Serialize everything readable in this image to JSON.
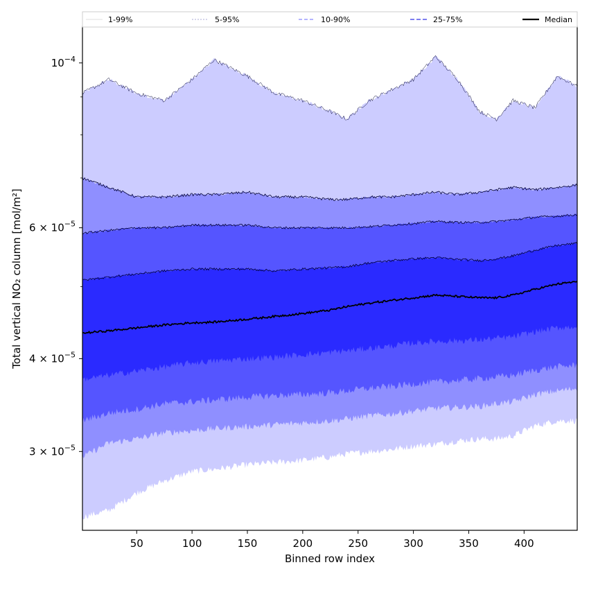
{
  "chart_data": {
    "type": "area",
    "xlabel": "Binned row index",
    "ylabel": "Total vertical NO₂ column [mol/m²]",
    "yscale": "log",
    "xlim": [
      1,
      448
    ],
    "ylim": [
      2.35e-05,
      0.000112
    ],
    "grid": false,
    "legend_position": "top",
    "x_ticks": [
      50,
      100,
      150,
      200,
      250,
      300,
      350,
      400
    ],
    "x_tick_labels": [
      "50",
      "100",
      "150",
      "200",
      "250",
      "300",
      "350",
      "400"
    ],
    "y_ticks": [
      {
        "value": 0.0001,
        "mantissa": "",
        "exponent": "−4",
        "label": "10"
      },
      {
        "value": 6e-05,
        "mantissa": "6",
        "exponent": "−5",
        "label": "× 10"
      },
      {
        "value": 4e-05,
        "mantissa": "4",
        "exponent": "−5",
        "label": "× 10"
      },
      {
        "value": 3e-05,
        "mantissa": "3",
        "exponent": "−5",
        "label": "× 10"
      }
    ],
    "x": [
      1,
      25,
      50,
      75,
      100,
      120,
      150,
      175,
      200,
      225,
      240,
      260,
      280,
      300,
      320,
      340,
      360,
      375,
      390,
      410,
      430,
      448
    ],
    "bands": [
      {
        "name": "1-99%",
        "fill": "#ccccff",
        "lower": [
          2.45e-05,
          2.5e-05,
          2.64e-05,
          2.74e-05,
          2.82e-05,
          2.84e-05,
          2.88e-05,
          2.9e-05,
          2.92e-05,
          2.95e-05,
          2.98e-05,
          3e-05,
          3.02e-05,
          3.05e-05,
          3.07e-05,
          3.1e-05,
          3.12e-05,
          3.12e-05,
          3.15e-05,
          3.25e-05,
          3.3e-05,
          3.3e-05
        ],
        "upper": [
          9.1e-05,
          9.5e-05,
          9.1e-05,
          8.9e-05,
          9.5e-05,
          0.000101,
          9.6e-05,
          9.1e-05,
          8.9e-05,
          8.6e-05,
          8.4e-05,
          8.9e-05,
          9.2e-05,
          9.5e-05,
          0.000102,
          9.5e-05,
          8.6e-05,
          8.4e-05,
          8.9e-05,
          8.7e-05,
          9.6e-05,
          9.3e-05
        ]
      },
      {
        "name": "5-95%",
        "fill": "#8f8fff",
        "lower": [
          2.95e-05,
          3.08e-05,
          3.12e-05,
          3.18e-05,
          3.2e-05,
          3.22e-05,
          3.24e-05,
          3.26e-05,
          3.28e-05,
          3.3e-05,
          3.32e-05,
          3.35e-05,
          3.37e-05,
          3.4e-05,
          3.43e-05,
          3.44e-05,
          3.45e-05,
          3.48e-05,
          3.5e-05,
          3.58e-05,
          3.62e-05,
          3.65e-05
        ],
        "upper": [
          7e-05,
          6.8e-05,
          6.6e-05,
          6.6e-05,
          6.65e-05,
          6.65e-05,
          6.7e-05,
          6.6e-05,
          6.6e-05,
          6.55e-05,
          6.55e-05,
          6.6e-05,
          6.6e-05,
          6.65e-05,
          6.7e-05,
          6.65e-05,
          6.7e-05,
          6.75e-05,
          6.8e-05,
          6.75e-05,
          6.8e-05,
          6.85e-05
        ]
      },
      {
        "name": "10-90%",
        "fill": "#5555ff",
        "lower": [
          3.3e-05,
          3.38e-05,
          3.42e-05,
          3.48e-05,
          3.5e-05,
          3.52e-05,
          3.55e-05,
          3.57e-05,
          3.58e-05,
          3.6e-05,
          3.62e-05,
          3.65e-05,
          3.67e-05,
          3.7e-05,
          3.72e-05,
          3.74e-05,
          3.76e-05,
          3.78e-05,
          3.8e-05,
          3.86e-05,
          3.9e-05,
          3.92e-05
        ],
        "upper": [
          5.9e-05,
          5.95e-05,
          6e-05,
          6e-05,
          6.05e-05,
          6.05e-05,
          6.05e-05,
          6e-05,
          6e-05,
          6e-05,
          6e-05,
          6.02e-05,
          6.05e-05,
          6.08e-05,
          6.12e-05,
          6.1e-05,
          6.1e-05,
          6.12e-05,
          6.15e-05,
          6.2e-05,
          6.22e-05,
          6.25e-05
        ]
      },
      {
        "name": "25-75%",
        "fill": "#2a2aff",
        "lower": [
          3.75e-05,
          3.8e-05,
          3.85e-05,
          3.9e-05,
          3.95e-05,
          3.97e-05,
          4e-05,
          4.02e-05,
          4.05e-05,
          4.08e-05,
          4.1e-05,
          4.13e-05,
          4.16e-05,
          4.2e-05,
          4.22e-05,
          4.23e-05,
          4.24e-05,
          4.26e-05,
          4.28e-05,
          4.35e-05,
          4.4e-05,
          4.42e-05
        ],
        "upper": [
          5.1e-05,
          5.15e-05,
          5.2e-05,
          5.25e-05,
          5.28e-05,
          5.28e-05,
          5.28e-05,
          5.25e-05,
          5.28e-05,
          5.3e-05,
          5.32e-05,
          5.38e-05,
          5.42e-05,
          5.45e-05,
          5.47e-05,
          5.44e-05,
          5.42e-05,
          5.45e-05,
          5.5e-05,
          5.6e-05,
          5.68e-05,
          5.72e-05
        ]
      }
    ],
    "median": [
      4.33e-05,
      4.36e-05,
      4.4e-05,
      4.44e-05,
      4.47e-05,
      4.48e-05,
      4.52e-05,
      4.56e-05,
      4.6e-05,
      4.65e-05,
      4.7e-05,
      4.75e-05,
      4.79e-05,
      4.83e-05,
      4.87e-05,
      4.85e-05,
      4.83e-05,
      4.83e-05,
      4.87e-05,
      4.96e-05,
      5.04e-05,
      5.08e-05
    ],
    "legend": [
      {
        "label": "1-99%",
        "color": "#c0c0c0",
        "dash": "none",
        "width": 0.6
      },
      {
        "label": "5-95%",
        "color": "#5555aa",
        "dash": "2,2",
        "width": 0.6
      },
      {
        "label": "10-90%",
        "color": "#6a6aff",
        "dash": "5,3",
        "width": 1.0
      },
      {
        "label": "25-75%",
        "color": "#3232e6",
        "dash": "6,3",
        "width": 1.2
      },
      {
        "label": "Median",
        "color": "#000000",
        "dash": "none",
        "width": 2.2
      }
    ]
  }
}
